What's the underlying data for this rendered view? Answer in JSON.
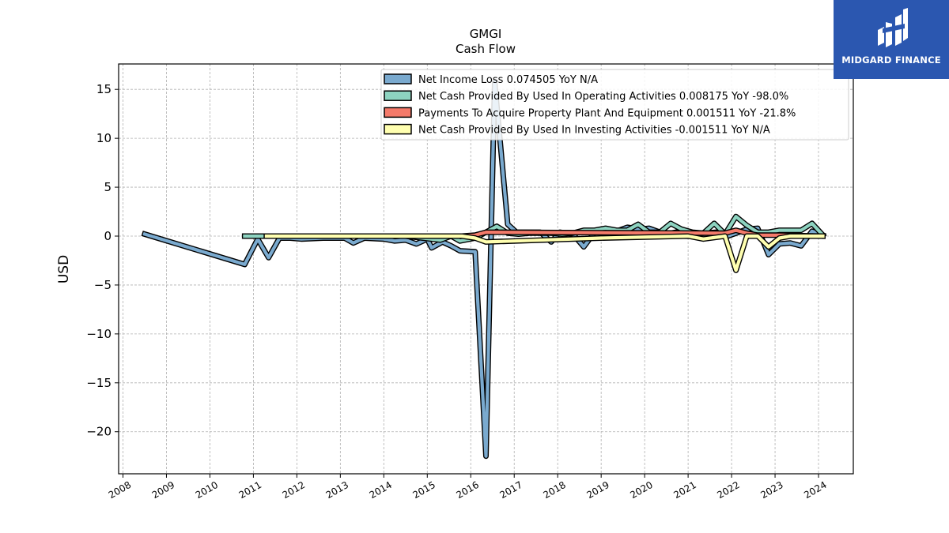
{
  "brand": {
    "name": "MIDGARD FINANCE",
    "logo_color": "#2b57b0"
  },
  "chart_data": {
    "type": "line",
    "title": "GMGI",
    "subtitle": "Cash Flow",
    "xlabel": "",
    "ylabel": "USD",
    "xlim": [
      2007.9,
      2024.8
    ],
    "ylim": [
      -24.3,
      17.6
    ],
    "xticks": [
      2008,
      2009,
      2010,
      2011,
      2012,
      2013,
      2014,
      2015,
      2016,
      2017,
      2018,
      2019,
      2020,
      2021,
      2022,
      2023,
      2024
    ],
    "yticks": [
      15,
      10,
      5,
      0,
      -5,
      -10,
      -15,
      -20
    ],
    "ytick_labels": [
      "15",
      "10",
      "5",
      "0",
      "−5",
      "−10",
      "−15",
      "−20"
    ],
    "grid": true,
    "legend_position": "top-right",
    "series": [
      {
        "name": "Net Income Loss  0.074505 YoY N/A",
        "color": "#7aaacf",
        "points": [
          [
            2008.5,
            0.2
          ],
          [
            2010.8,
            -2.9
          ],
          [
            2011.1,
            -0.3
          ],
          [
            2011.35,
            -2.2
          ],
          [
            2011.6,
            -0.2
          ],
          [
            2011.85,
            -0.2
          ],
          [
            2012.1,
            -0.3
          ],
          [
            2012.6,
            -0.2
          ],
          [
            2013.1,
            -0.2
          ],
          [
            2013.3,
            -0.7
          ],
          [
            2013.55,
            -0.2
          ],
          [
            2014.0,
            -0.3
          ],
          [
            2014.25,
            -0.5
          ],
          [
            2014.5,
            -0.4
          ],
          [
            2014.75,
            -0.8
          ],
          [
            2015.0,
            -0.3
          ],
          [
            2015.1,
            -1.2
          ],
          [
            2015.35,
            -0.6
          ],
          [
            2015.55,
            -1.0
          ],
          [
            2015.75,
            -1.5
          ],
          [
            2016.1,
            -1.6
          ],
          [
            2016.35,
            -22.5
          ],
          [
            2016.55,
            15.8
          ],
          [
            2016.85,
            1.2
          ],
          [
            2017.05,
            0.4
          ],
          [
            2017.6,
            0.4
          ],
          [
            2017.85,
            -0.6
          ],
          [
            2018.05,
            0.4
          ],
          [
            2018.35,
            0.2
          ],
          [
            2018.6,
            -1.1
          ],
          [
            2018.85,
            0.4
          ],
          [
            2019.05,
            0.3
          ],
          [
            2019.35,
            0.5
          ],
          [
            2019.6,
            0.9
          ],
          [
            2019.9,
            0.7
          ],
          [
            2020.1,
            0.8
          ],
          [
            2020.35,
            0.4
          ],
          [
            2020.6,
            0.3
          ],
          [
            2020.85,
            0.5
          ],
          [
            2021.1,
            0.2
          ],
          [
            2021.35,
            0.3
          ],
          [
            2021.65,
            0.4
          ],
          [
            2021.85,
            -0.1
          ],
          [
            2022.1,
            0.3
          ],
          [
            2022.35,
            0.7
          ],
          [
            2022.6,
            0.8
          ],
          [
            2022.85,
            -1.9
          ],
          [
            2023.1,
            -0.8
          ],
          [
            2023.35,
            -0.7
          ],
          [
            2023.6,
            -1.0
          ],
          [
            2023.85,
            0.5
          ],
          [
            2024.1,
            0.1
          ]
        ]
      },
      {
        "name": "Net Cash Provided By Used In Operating Activities  0.008175 YoY -98.0%",
        "color": "#8dd3c0",
        "points": [
          [
            2010.8,
            0.0
          ],
          [
            2011.4,
            0.0
          ],
          [
            2012.5,
            0.0
          ],
          [
            2014.5,
            0.0
          ],
          [
            2015.3,
            -0.4
          ],
          [
            2015.55,
            0.0
          ],
          [
            2015.75,
            -0.5
          ],
          [
            2016.1,
            -0.2
          ],
          [
            2016.35,
            0.4
          ],
          [
            2016.6,
            1.0
          ],
          [
            2016.85,
            0.3
          ],
          [
            2017.1,
            0.2
          ],
          [
            2017.35,
            0.3
          ],
          [
            2017.6,
            0.3
          ],
          [
            2017.85,
            0.3
          ],
          [
            2018.1,
            0.2
          ],
          [
            2018.35,
            0.3
          ],
          [
            2018.6,
            0.6
          ],
          [
            2018.85,
            0.6
          ],
          [
            2019.1,
            0.8
          ],
          [
            2019.35,
            0.6
          ],
          [
            2019.6,
            0.6
          ],
          [
            2019.85,
            1.2
          ],
          [
            2020.1,
            0.4
          ],
          [
            2020.35,
            0.4
          ],
          [
            2020.6,
            1.3
          ],
          [
            2020.85,
            0.7
          ],
          [
            2021.1,
            0.4
          ],
          [
            2021.35,
            0.3
          ],
          [
            2021.6,
            1.3
          ],
          [
            2021.85,
            0.2
          ],
          [
            2022.1,
            2.0
          ],
          [
            2022.35,
            1.1
          ],
          [
            2022.6,
            0.4
          ],
          [
            2022.85,
            0.4
          ],
          [
            2023.1,
            0.6
          ],
          [
            2023.35,
            0.6
          ],
          [
            2023.6,
            0.6
          ],
          [
            2023.85,
            1.3
          ],
          [
            2024.1,
            0.1
          ]
        ]
      },
      {
        "name": "Payments To Acquire Property Plant And Equipment  0.001511 YoY -21.8%",
        "color": "#f47a6a",
        "points": [
          [
            2011.3,
            0.0
          ],
          [
            2015.8,
            0.0
          ],
          [
            2016.1,
            0.1
          ],
          [
            2016.35,
            0.4
          ],
          [
            2021.85,
            0.3
          ],
          [
            2022.1,
            0.6
          ],
          [
            2022.35,
            0.3
          ],
          [
            2022.6,
            0.1
          ],
          [
            2022.85,
            0.1
          ],
          [
            2023.1,
            0.1
          ],
          [
            2024.1,
            0.0
          ]
        ]
      },
      {
        "name": "Net Cash Provided By Used In Investing Activities  -0.001511 YoY N/A",
        "color": "#ffffb0",
        "points": [
          [
            2011.3,
            0.0
          ],
          [
            2015.8,
            0.0
          ],
          [
            2016.1,
            -0.2
          ],
          [
            2016.35,
            -0.6
          ],
          [
            2019.0,
            -0.2
          ],
          [
            2021.0,
            0.0
          ],
          [
            2021.35,
            -0.3
          ],
          [
            2021.85,
            0.0
          ],
          [
            2022.1,
            -3.5
          ],
          [
            2022.35,
            0.0
          ],
          [
            2022.6,
            0.0
          ],
          [
            2022.85,
            -1.1
          ],
          [
            2023.1,
            -0.2
          ],
          [
            2023.35,
            0.0
          ],
          [
            2024.1,
            0.0
          ]
        ]
      }
    ]
  }
}
